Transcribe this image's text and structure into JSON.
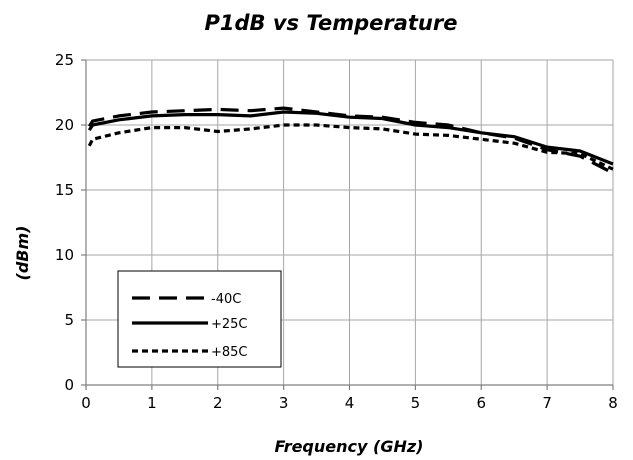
{
  "chart_data": {
    "type": "line",
    "title": "P1dB vs Temperature",
    "xlabel": "Frequency (GHz)",
    "ylabel": "(dBm)",
    "xlim": [
      0,
      8
    ],
    "ylim": [
      0,
      25
    ],
    "xticks": [
      "0",
      "1",
      "2",
      "3",
      "4",
      "5",
      "6",
      "7",
      "8"
    ],
    "yticks": [
      "0",
      "5",
      "10",
      "15",
      "20",
      "25"
    ],
    "grid": true,
    "legend_position": "bottom-left",
    "series": [
      {
        "name": "-40C",
        "dash": "long-dash",
        "x": [
          0.05,
          0.1,
          0.5,
          1.0,
          1.5,
          2.0,
          2.5,
          3.0,
          3.5,
          4.0,
          4.5,
          5.0,
          5.5,
          6.0,
          6.5,
          7.0,
          7.5,
          8.0
        ],
        "y": [
          19.9,
          20.3,
          20.7,
          21.0,
          21.1,
          21.2,
          21.1,
          21.3,
          21.0,
          20.7,
          20.6,
          20.2,
          20.0,
          19.4,
          19.0,
          18.1,
          17.6,
          16.3
        ]
      },
      {
        "name": "+25C",
        "dash": "solid",
        "x": [
          0.05,
          0.1,
          0.5,
          1.0,
          1.5,
          2.0,
          2.5,
          3.0,
          3.5,
          4.0,
          4.5,
          5.0,
          5.5,
          6.0,
          6.5,
          7.0,
          7.5,
          8.0
        ],
        "y": [
          19.6,
          20.0,
          20.4,
          20.7,
          20.8,
          20.8,
          20.7,
          21.0,
          20.9,
          20.6,
          20.5,
          20.0,
          19.8,
          19.4,
          19.1,
          18.3,
          18.0,
          17.0
        ]
      },
      {
        "name": "+85C",
        "dash": "short-dash",
        "x": [
          0.05,
          0.1,
          0.5,
          1.0,
          1.5,
          2.0,
          2.5,
          3.0,
          3.5,
          4.0,
          4.5,
          5.0,
          5.5,
          6.0,
          6.5,
          7.0,
          7.5,
          8.0
        ],
        "y": [
          18.4,
          18.9,
          19.4,
          19.8,
          19.8,
          19.5,
          19.7,
          20.0,
          20.0,
          19.8,
          19.7,
          19.3,
          19.2,
          18.9,
          18.6,
          17.9,
          17.8,
          16.6
        ]
      }
    ]
  }
}
